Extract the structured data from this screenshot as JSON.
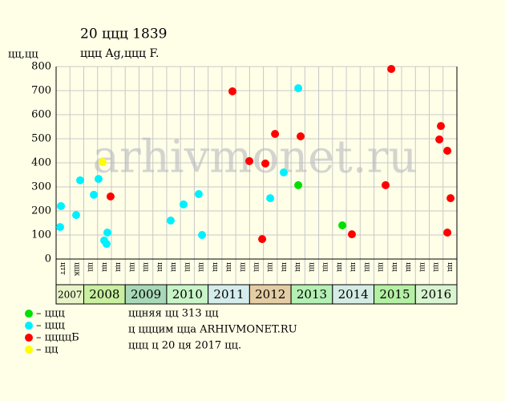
{
  "chart_data": {
    "type": "scatter",
    "title": "20 ццц 1839",
    "subtitle": "ццц Ag,ццц F.",
    "y_label": "цц,цц",
    "watermark": "arhivmonet.ru",
    "ylim": [
      0,
      800
    ],
    "yticks": [
      0,
      100,
      200,
      300,
      400,
      500,
      600,
      700,
      800
    ],
    "xlim": [
      0,
      29
    ],
    "grid": true,
    "categories": [
      "цтт",
      "ццк",
      "цц",
      "цц",
      "цц",
      "цц",
      "цц",
      "цц",
      "цц",
      "цц",
      "цц",
      "цц",
      "цц",
      "цц",
      "цц",
      "цц",
      "цц",
      "цц",
      "цц",
      "цц",
      "цц",
      "цц",
      "цц",
      "цц",
      "цц",
      "цц",
      "цц",
      "цц",
      "цц"
    ],
    "years": [
      {
        "label": "2007",
        "color": "#e8f4c8"
      },
      {
        "label": "2008",
        "color": "#c8f0a0"
      },
      {
        "label": "2009",
        "color": "#a8d8b8"
      },
      {
        "label": "2010",
        "color": "#c8f4c8"
      },
      {
        "label": "2011",
        "color": "#d4ecec"
      },
      {
        "label": "2012",
        "color": "#e4cca4"
      },
      {
        "label": "2013",
        "color": "#b4f0b4"
      },
      {
        "label": "2014",
        "color": "#d4ece4"
      },
      {
        "label": "2015",
        "color": "#b4f0a4"
      },
      {
        "label": "2016",
        "color": "#d8f4d0"
      }
    ],
    "series": [
      {
        "name": "– ццц",
        "color": "#00e000",
        "x": [
          17.52,
          20.71
        ],
        "values": [
          307,
          140
        ]
      },
      {
        "name": "– ццц",
        "color": "#00f0ff",
        "x": [
          0.35,
          0.29,
          1.45,
          1.74,
          2.73,
          3.07,
          3.48,
          3.65,
          3.71,
          8.29,
          9.22,
          10.32,
          10.56,
          15.49,
          16.47,
          17.52
        ],
        "values": [
          220,
          133,
          183,
          327,
          267,
          333,
          77,
          63,
          110,
          160,
          227,
          270,
          100,
          253,
          360,
          710
        ]
      },
      {
        "name": "– ццццБ",
        "color": "#ff0000",
        "x": [
          3.94,
          12.76,
          13.98,
          14.91,
          15.14,
          15.84,
          17.69,
          21.4,
          23.84,
          24.25,
          27.73,
          27.84,
          28.31,
          28.54,
          28.31
        ],
        "values": [
          260,
          697,
          407,
          83,
          397,
          520,
          510,
          103,
          307,
          790,
          497,
          553,
          450,
          253,
          110
        ]
      },
      {
        "name": "– цц",
        "color": "#ffff00",
        "x": [
          3.36
        ],
        "values": [
          403
        ]
      }
    ],
    "notes": [
      "ццняя цц 313 цц",
      "ц цццим ццa ARHIVMONET.RU",
      "ццц ц 20 ця 2017 цц."
    ]
  }
}
